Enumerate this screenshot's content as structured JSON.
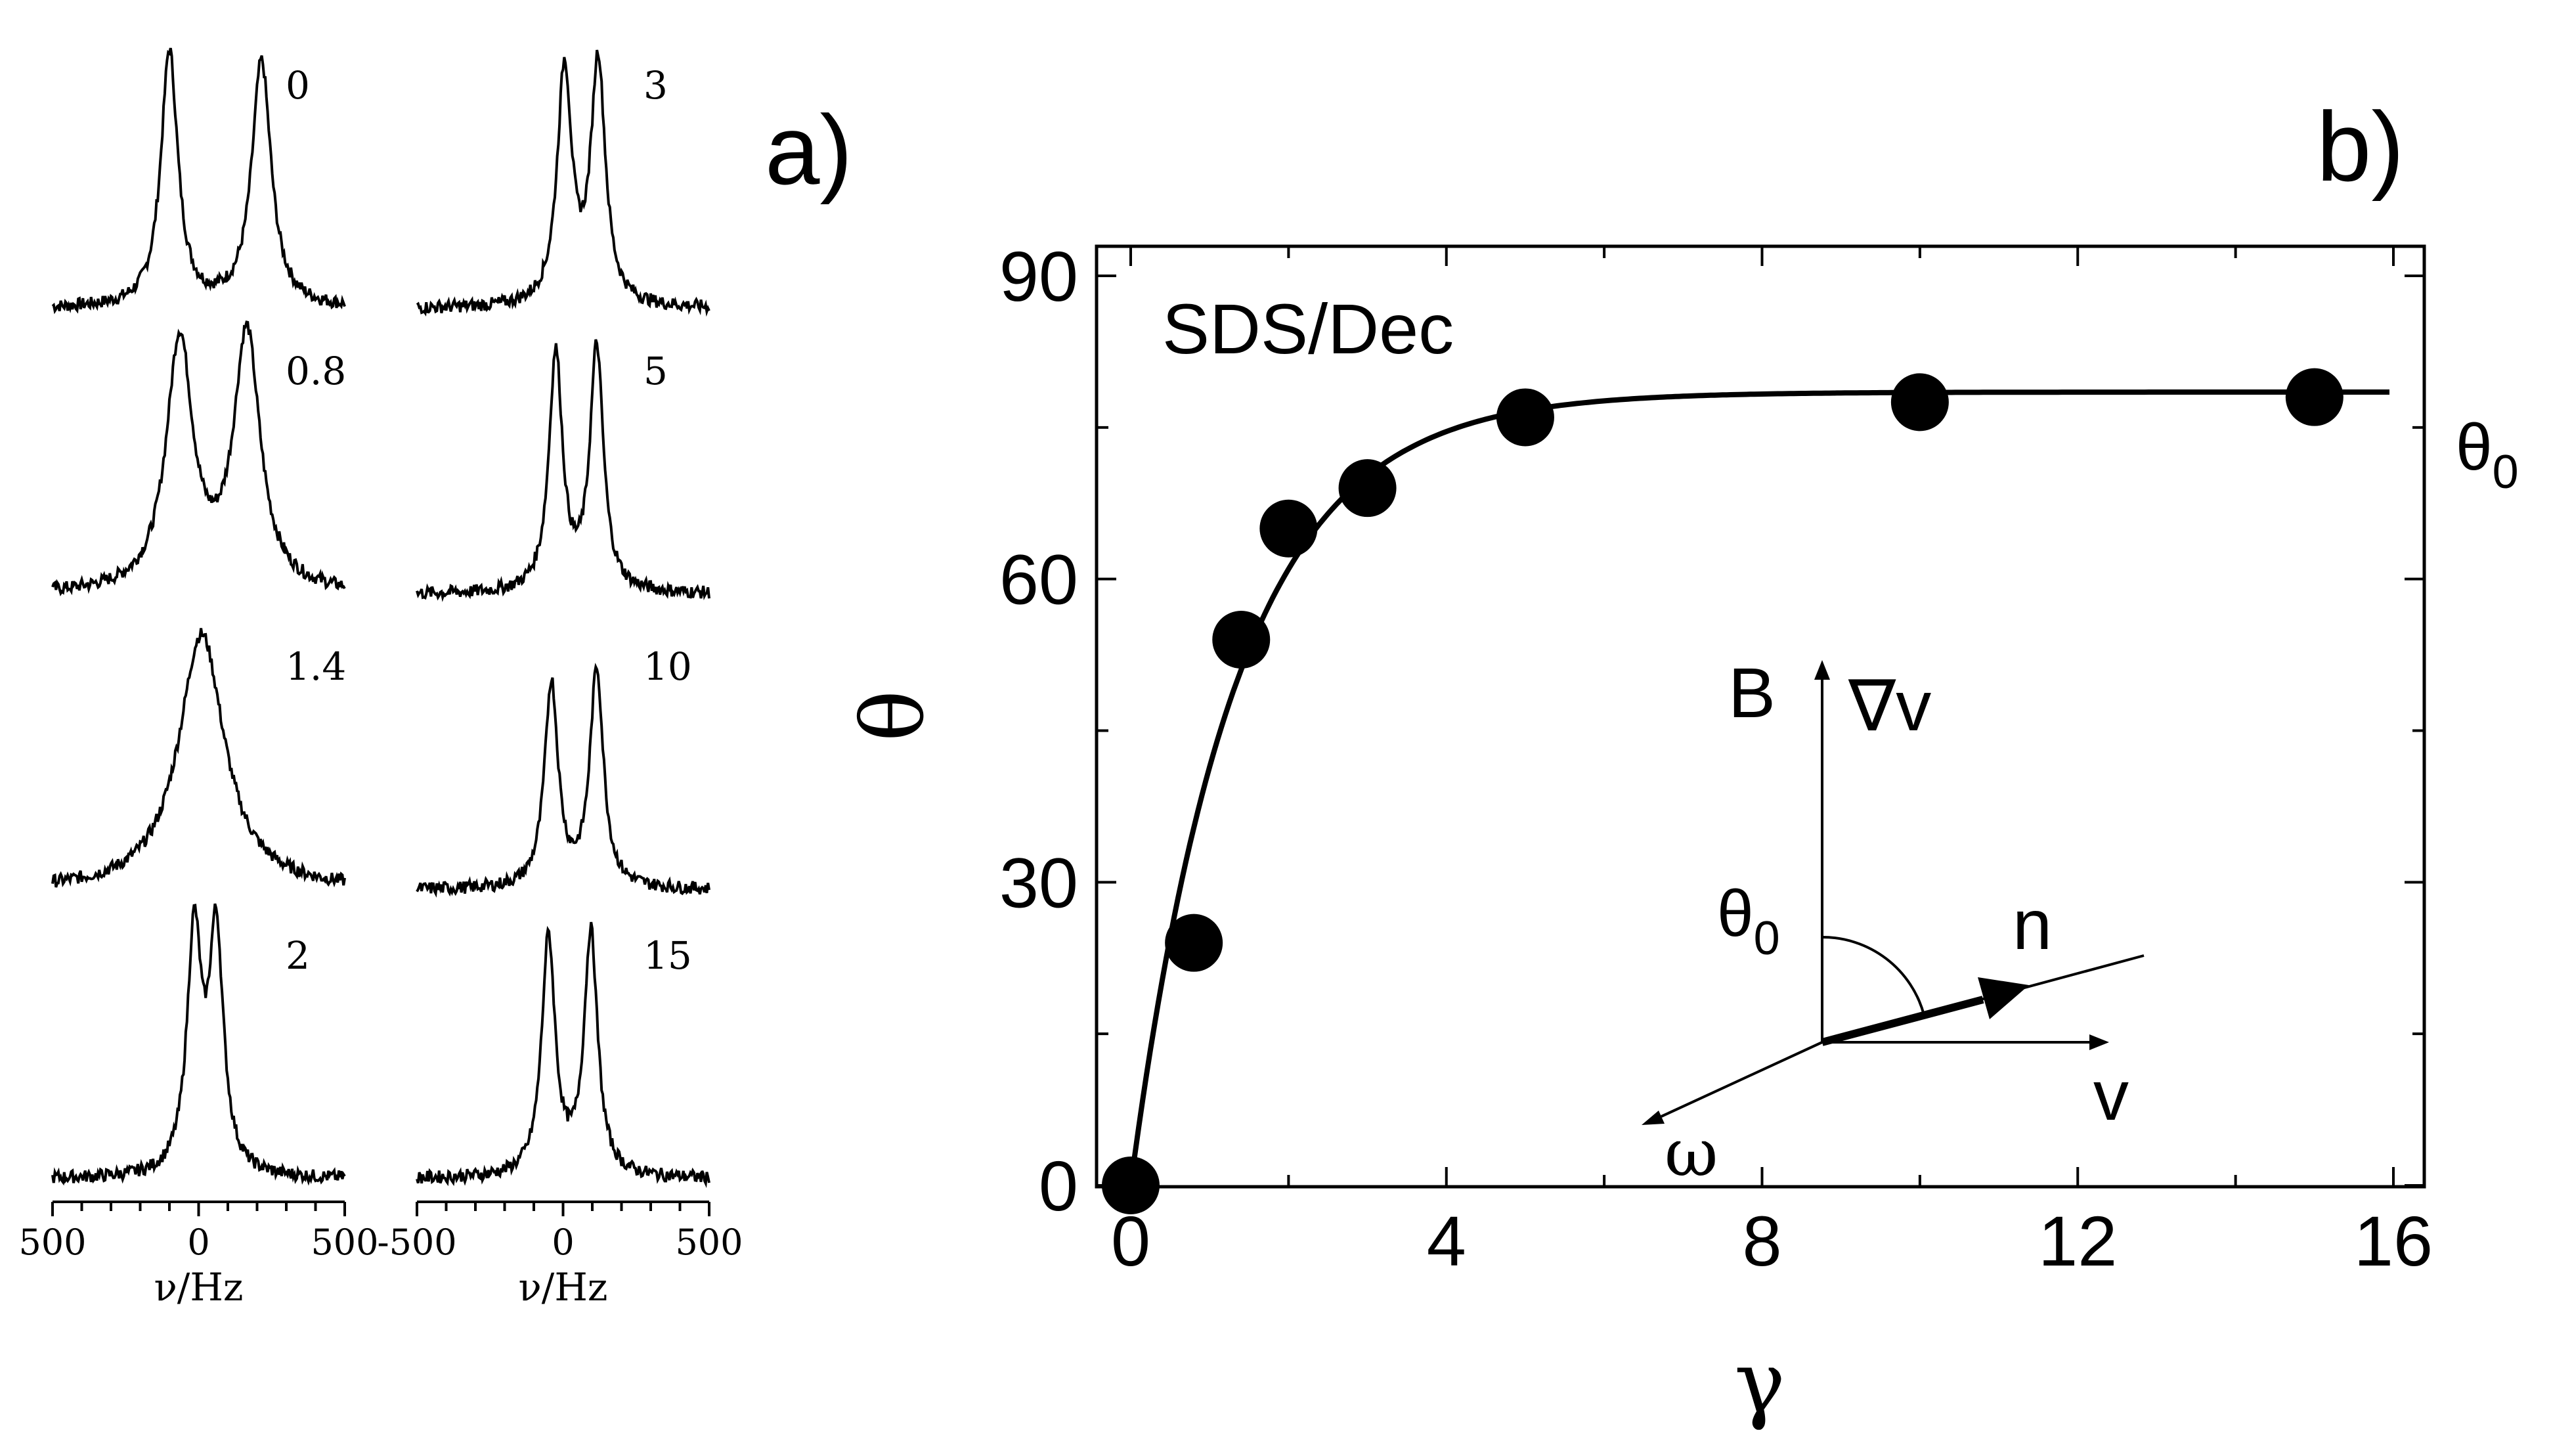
{
  "chart_data": [
    {
      "panel": "a)",
      "type": "line",
      "description_kind": "NMR spectra stack",
      "xlabel_prefix": "ν",
      "xlabel_unit": "/Hz",
      "columns": [
        {
          "tick_labels": [
            "500",
            "0",
            "500"
          ],
          "spectra": [
            {
              "label": "0",
              "peaks": [
                {
                  "x": -100,
                  "h": 1.0,
                  "w": 35
                },
                {
                  "x": 215,
                  "h": 0.96,
                  "w": 40
                }
              ]
            },
            {
              "label": "0.8",
              "peaks": [
                {
                  "x": -65,
                  "h": 0.98,
                  "w": 55
                },
                {
                  "x": 165,
                  "h": 1.0,
                  "w": 55
                }
              ]
            },
            {
              "label": "1.4",
              "peaks": [
                {
                  "x": 10,
                  "h": 1.0,
                  "w": 95
                }
              ]
            },
            {
              "label": "2",
              "peaks": [
                {
                  "x": -15,
                  "h": 0.93,
                  "w": 30
                },
                {
                  "x": 60,
                  "h": 0.93,
                  "w": 30
                }
              ]
            }
          ]
        },
        {
          "tick_labels": [
            "-500",
            "0",
            "500"
          ],
          "spectra": [
            {
              "label": "3",
              "peaks": [
                {
                  "x": 5,
                  "h": 0.92,
                  "w": 30
                },
                {
                  "x": 120,
                  "h": 0.95,
                  "w": 30
                }
              ]
            },
            {
              "label": "5",
              "peaks": [
                {
                  "x": -25,
                  "h": 0.93,
                  "w": 28
                },
                {
                  "x": 115,
                  "h": 0.95,
                  "w": 28
                }
              ]
            },
            {
              "label": "10",
              "peaks": [
                {
                  "x": -40,
                  "h": 0.8,
                  "w": 28
                },
                {
                  "x": 115,
                  "h": 0.85,
                  "w": 28
                }
              ]
            },
            {
              "label": "15",
              "peaks": [
                {
                  "x": -50,
                  "h": 0.93,
                  "w": 28
                },
                {
                  "x": 95,
                  "h": 0.95,
                  "w": 28
                }
              ]
            }
          ]
        }
      ]
    },
    {
      "panel": "b)",
      "type": "scatter",
      "legend_text": "SDS/Dec",
      "xlabel": "γ",
      "ylabel": "θ",
      "xlim": [
        0,
        16
      ],
      "ylim": [
        0,
        90
      ],
      "xticks": [
        0,
        4,
        8,
        12,
        16
      ],
      "yticks": [
        0,
        30,
        60,
        90
      ],
      "points": [
        {
          "x": 0,
          "y": 0
        },
        {
          "x": 0.8,
          "y": 24
        },
        {
          "x": 1.4,
          "y": 54
        },
        {
          "x": 2,
          "y": 65
        },
        {
          "x": 3,
          "y": 69
        },
        {
          "x": 5,
          "y": 76
        },
        {
          "x": 10,
          "y": 77.5
        },
        {
          "x": 15,
          "y": 78
        }
      ],
      "fit": {
        "name": "θ0",
        "asymptote": 78.5,
        "rate": 0.75
      },
      "asymptote_label_main": "θ",
      "asymptote_label_sub": "0",
      "inset": {
        "label_B": "B",
        "label_gradv": "∇v",
        "label_theta": "θ",
        "label_theta_sub": "0",
        "label_n": "n",
        "label_v": "v",
        "label_omega": "ω"
      }
    }
  ]
}
